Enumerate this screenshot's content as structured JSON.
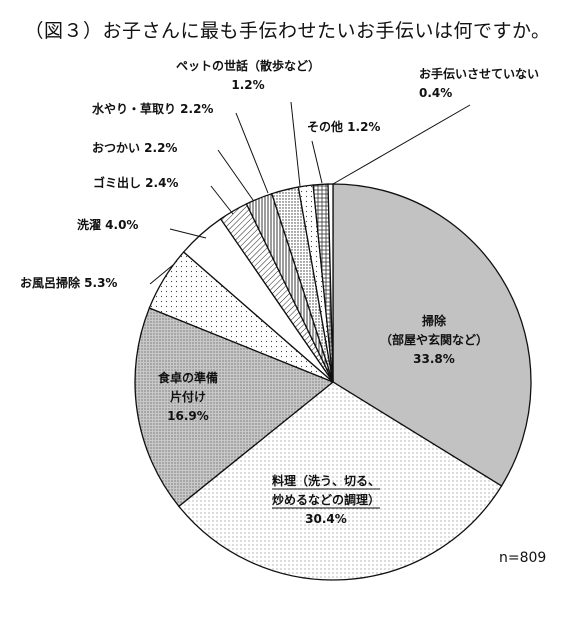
{
  "title": "（図３）お子さんに最も手伝わせたいお手伝いは何ですか。",
  "n_label": "n=809",
  "chart_data": {
    "type": "pie",
    "title": "（図３）お子さんに最も手伝わせたいお手伝いは何ですか。",
    "start_angle_deg": 0,
    "direction": "clockwise",
    "legend": "none",
    "slices": [
      {
        "label": "掃除\n（部屋や玄関など）",
        "value": 33.8,
        "value_label": "33.8%",
        "pattern": "solid-gray"
      },
      {
        "label": "料理（洗う、切る、\n炒めるなどの調理）",
        "value": 30.4,
        "value_label": "30.4%",
        "pattern": "fine-dots"
      },
      {
        "label": "食卓の準備\n片付け",
        "value": 16.9,
        "value_label": "16.9%",
        "pattern": "gray-dots"
      },
      {
        "label": "お風呂掃除",
        "value": 5.3,
        "value_label": "5.3%",
        "pattern": "sparse-dots"
      },
      {
        "label": "洗濯",
        "value": 4.0,
        "value_label": "4.0%",
        "pattern": "white"
      },
      {
        "label": "ゴミ出し",
        "value": 2.4,
        "value_label": "2.4%",
        "pattern": "diagonal-lines"
      },
      {
        "label": "おつかい",
        "value": 2.2,
        "value_label": "2.2%",
        "pattern": "vertical-lines"
      },
      {
        "label": "水やり・草取り",
        "value": 2.2,
        "value_label": "2.2%",
        "pattern": "dense-dots"
      },
      {
        "label": "ペットの世話（散歩など）",
        "value": 1.2,
        "value_label": "1.2%",
        "pattern": "sparse-dots"
      },
      {
        "label": "その他",
        "value": 1.2,
        "value_label": "1.2%",
        "pattern": "cross-hatch"
      },
      {
        "label": "お手伝いさせていない",
        "value": 0.4,
        "value_label": "0.4%",
        "pattern": "white"
      }
    ]
  },
  "colors": {
    "outline": "#111111",
    "solid_gray": "#c2c2c2",
    "dark_dots_bg": "#c8c8c8",
    "background": "#ffffff"
  }
}
